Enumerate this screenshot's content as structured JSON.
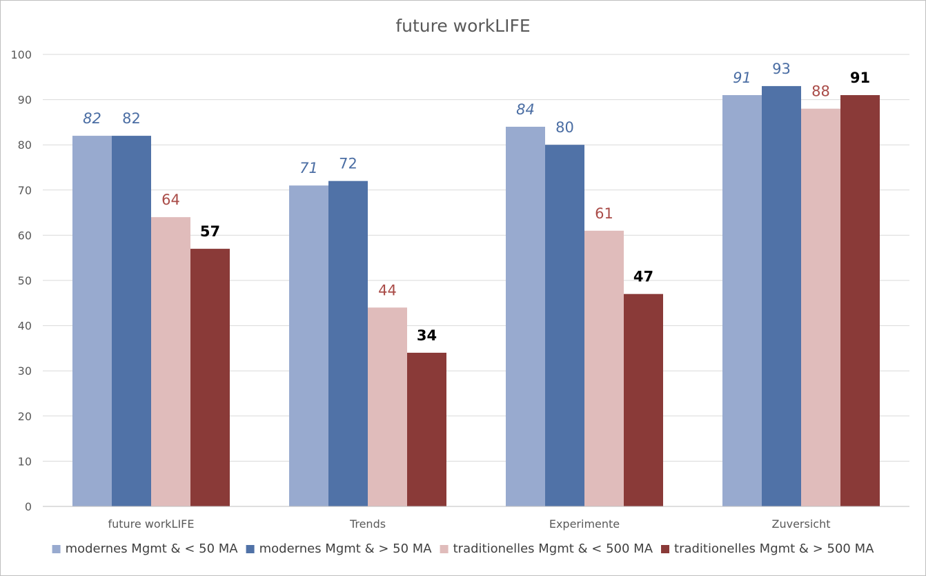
{
  "chart_data": {
    "type": "bar",
    "title": "future workLIFE",
    "categories": [
      "future workLIFE",
      "Trends",
      "Experimente",
      "Zuversicht"
    ],
    "ylim": [
      0,
      100
    ],
    "yticks": [
      0,
      10,
      20,
      30,
      40,
      50,
      60,
      70,
      80,
      90,
      100
    ],
    "grid": true,
    "legend_position": "bottom",
    "series": [
      {
        "name": "modernes Mgmt & < 50 MA",
        "color": "#98aacf",
        "label_color": "#4a6da3",
        "label_style": "italic",
        "label_weight": "normal",
        "values": [
          82,
          71,
          84,
          91
        ]
      },
      {
        "name": "modernes Mgmt & > 50 MA",
        "color": "#5072a7",
        "label_color": "#4a6da3",
        "label_style": "normal",
        "label_weight": "normal",
        "values": [
          82,
          72,
          80,
          93
        ]
      },
      {
        "name": "traditionelles Mgmt & < 500 MA",
        "color": "#e0bcbb",
        "label_color": "#a94b47",
        "label_style": "normal",
        "label_weight": "normal",
        "values": [
          64,
          44,
          61,
          88
        ]
      },
      {
        "name": "traditionelles Mgmt & > 500 MA",
        "color": "#8a3a38",
        "label_color": "#000000",
        "label_style": "normal",
        "label_weight": "bold",
        "values": [
          57,
          34,
          47,
          91
        ]
      }
    ],
    "gridline_color": "#d9d9d9",
    "axis_color": "#bfbfbf"
  }
}
